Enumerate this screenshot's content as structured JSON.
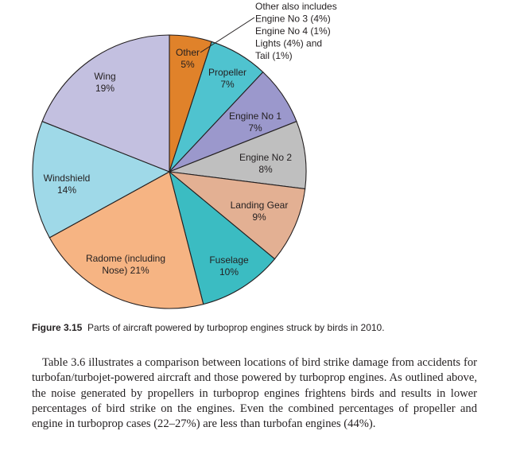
{
  "chart_data": {
    "type": "pie",
    "title": "",
    "slices": [
      {
        "label": "Other",
        "value": 5,
        "pct_label": "5%",
        "color": "#e0822a"
      },
      {
        "label": "Propeller",
        "value": 7,
        "pct_label": "7%",
        "color": "#4fc3cf"
      },
      {
        "label": "Engine No 1",
        "value": 7,
        "pct_label": "7%",
        "color": "#9b98cc"
      },
      {
        "label": "Engine No 2",
        "value": 8,
        "pct_label": "8%",
        "color": "#bfbfbf"
      },
      {
        "label": "Landing Gear",
        "value": 9,
        "pct_label": "9%",
        "color": "#e3b093"
      },
      {
        "label": "Fuselage",
        "value": 10,
        "pct_label": "10%",
        "color": "#3bbcc2"
      },
      {
        "label": "Radome (including Nose)",
        "value": 21,
        "pct_label": "21%",
        "color": "#f6b483",
        "label_lines": [
          "Radome (including",
          "Nose) 21%"
        ]
      },
      {
        "label": "Windshield",
        "value": 14,
        "pct_label": "14%",
        "color": "#9fd9e8"
      },
      {
        "label": "Wing",
        "value": 19,
        "pct_label": "19%",
        "color": "#c3c0e0"
      }
    ],
    "annotation": [
      "Other also includes",
      "Engine No 3 (4%)",
      "Engine No 4 (1%)",
      "Lights (4%) and",
      "Tail (1%)"
    ]
  },
  "caption": {
    "figure_number": "Figure 3.15",
    "text": "Parts of aircraft powered by turboprop engines struck by birds in 2010."
  },
  "body_paragraph": "Table 3.6 illustrates a comparison between locations of bird strike damage from accidents for turbofan/turbojet-powered aircraft and those powered by turboprop engines. As outlined above, the noise generated by propellers in turboprop engines frightens birds and results in lower percentages of bird strike on the engines. Even the combined percentages of propeller and engine in turboprop cases (22–27%) are less than turbofan engines (44%)."
}
